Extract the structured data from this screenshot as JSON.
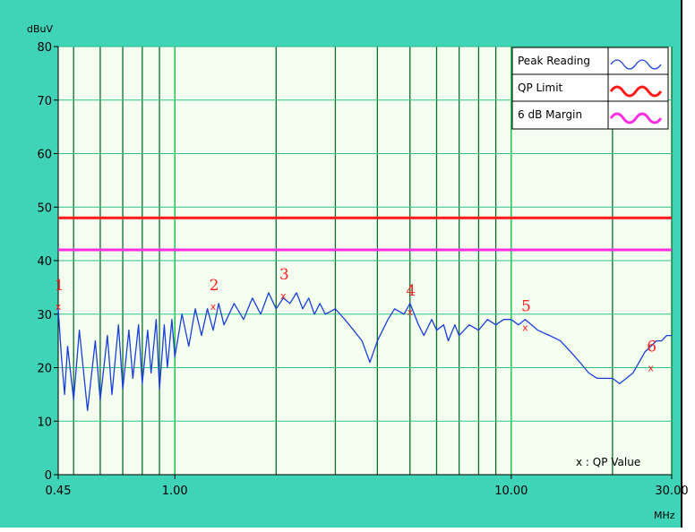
{
  "chart_data": {
    "type": "line",
    "ylabel": "dBuV",
    "xlabel": "MHz",
    "xscale": "log",
    "xlim": [
      0.45,
      30.0
    ],
    "ylim": [
      0,
      80
    ],
    "y_ticks": [
      "0",
      "10",
      "20",
      "30",
      "40",
      "50",
      "60",
      "70",
      "80"
    ],
    "x_tick_labels": [
      {
        "value": 0.45,
        "label": "0.45"
      },
      {
        "value": 1.0,
        "label": "1.00"
      },
      {
        "value": 10.0,
        "label": "10.00"
      },
      {
        "value": 30.0,
        "label": "30.00"
      }
    ],
    "legend": {
      "placement": "top-right",
      "entries": [
        {
          "label": "Peak Reading",
          "color": "#1a3fd8"
        },
        {
          "label": "QP Limit",
          "color": "#ff1a1a"
        },
        {
          "label": "6 dB Margin",
          "color": "#ff2ee0"
        }
      ]
    },
    "qp_note": "x : QP Value",
    "series": [
      {
        "name": "Peak Reading",
        "color": "#1a3fd8",
        "x": [
          0.45,
          0.46,
          0.47,
          0.48,
          0.5,
          0.52,
          0.55,
          0.58,
          0.6,
          0.63,
          0.65,
          0.68,
          0.7,
          0.73,
          0.75,
          0.78,
          0.8,
          0.83,
          0.85,
          0.88,
          0.9,
          0.93,
          0.95,
          0.98,
          1.0,
          1.05,
          1.1,
          1.15,
          1.2,
          1.25,
          1.3,
          1.35,
          1.4,
          1.5,
          1.6,
          1.7,
          1.8,
          1.9,
          2.0,
          2.1,
          2.2,
          2.3,
          2.4,
          2.5,
          2.6,
          2.7,
          2.8,
          3.0,
          3.2,
          3.4,
          3.6,
          3.8,
          4.0,
          4.3,
          4.5,
          4.8,
          5.0,
          5.3,
          5.5,
          5.8,
          6.0,
          6.3,
          6.5,
          6.8,
          7.0,
          7.5,
          8.0,
          8.5,
          9.0,
          9.5,
          10.0,
          10.5,
          11.0,
          12.0,
          13.0,
          14.0,
          15.0,
          16.0,
          17.0,
          18.0,
          19.0,
          20.0,
          21.0,
          22.0,
          23.0,
          24.0,
          25.0,
          26.0,
          27.0,
          28.0,
          29.0,
          30.0
        ],
        "values": [
          31,
          22,
          15,
          24,
          14,
          27,
          12,
          25,
          14,
          26,
          15,
          28,
          16,
          27,
          18,
          28,
          17,
          27,
          19,
          29,
          16,
          28,
          20,
          29,
          22,
          30,
          24,
          31,
          26,
          31,
          27,
          32,
          28,
          32,
          29,
          33,
          30,
          34,
          31,
          33,
          32,
          34,
          31,
          33,
          30,
          32,
          30,
          31,
          29,
          27,
          25,
          21,
          25,
          29,
          31,
          30,
          32,
          28,
          26,
          29,
          27,
          28,
          25,
          28,
          26,
          28,
          27,
          29,
          28,
          29,
          29,
          28,
          29,
          27,
          26,
          25,
          23,
          21,
          19,
          18,
          18,
          18,
          17,
          18,
          19,
          21,
          23,
          24,
          25,
          25,
          26,
          26
        ]
      },
      {
        "name": "QP Limit",
        "color": "#ff1a1a",
        "x": [
          0.45,
          30.0
        ],
        "values": [
          48,
          48
        ]
      },
      {
        "name": "6 dB Margin",
        "color": "#ff2ee0",
        "x": [
          0.45,
          30.0
        ],
        "values": [
          42,
          42
        ]
      }
    ],
    "qp_markers": [
      {
        "label": "1",
        "x": 0.45,
        "qp_value": 31.5
      },
      {
        "label": "2",
        "x": 1.3,
        "qp_value": 31.5
      },
      {
        "label": "3",
        "x": 2.1,
        "qp_value": 33.5
      },
      {
        "label": "4",
        "x": 5.0,
        "qp_value": 30.5
      },
      {
        "label": "5",
        "x": 11.0,
        "qp_value": 27.5
      },
      {
        "label": "6",
        "x": 26.0,
        "qp_value": 20.0
      }
    ]
  }
}
